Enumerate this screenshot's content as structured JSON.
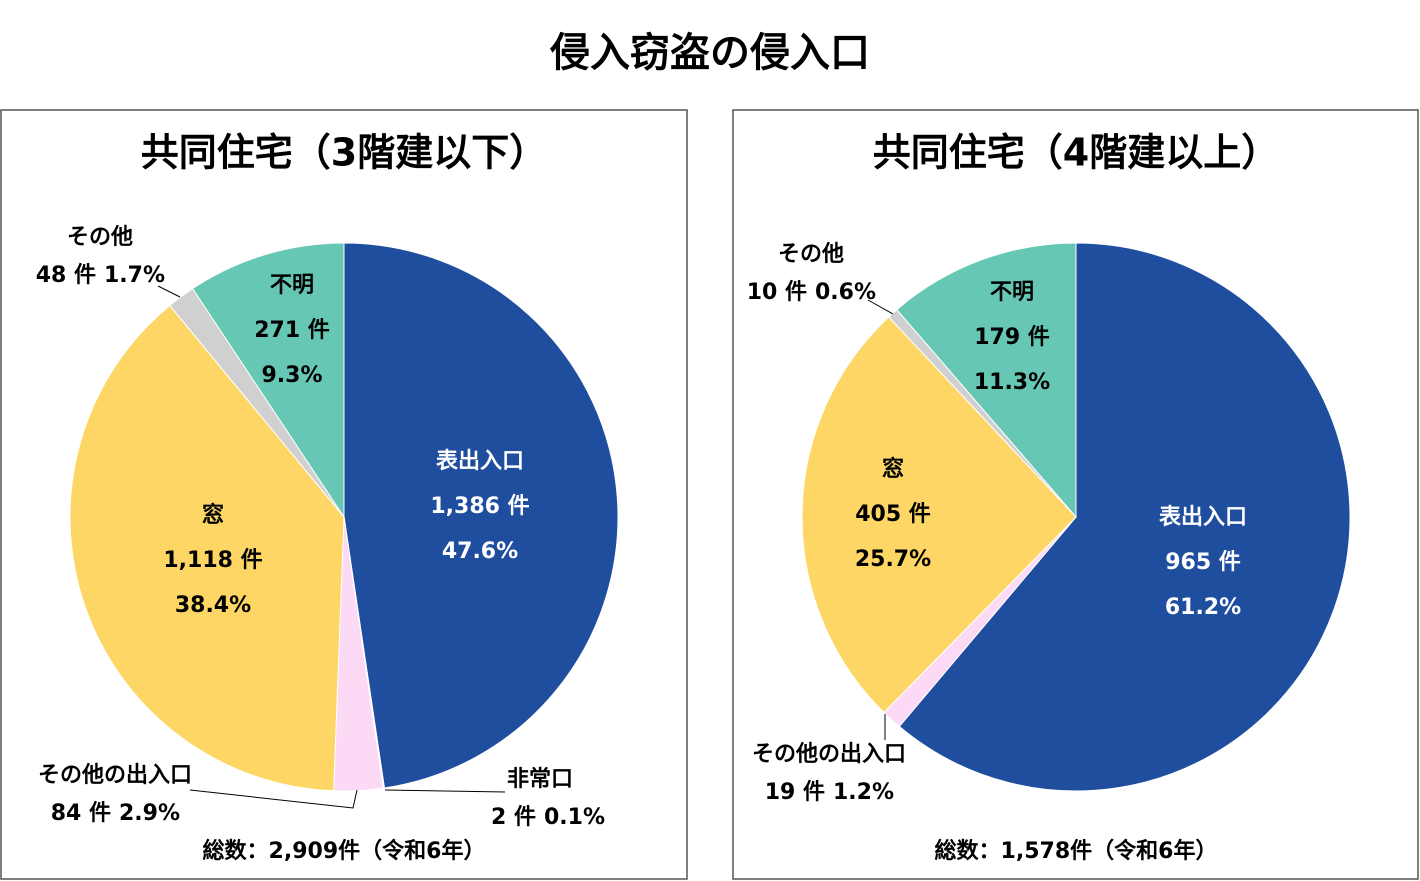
{
  "title": "侵入窃盗の侵入口",
  "chart_data": [
    {
      "type": "pie",
      "title": "共同住宅（3階建以下）",
      "categories": [
        "表出入口",
        "非常口",
        "その他の出入口",
        "窓",
        "その他",
        "不明"
      ],
      "values": [
        1386,
        2,
        84,
        1118,
        48,
        271
      ],
      "value_labels": [
        "1,386 件",
        "2 件",
        "84 件",
        "1,118 件",
        "48 件",
        "271 件"
      ],
      "percents": [
        47.6,
        0.1,
        2.9,
        38.4,
        1.7,
        9.3
      ],
      "percent_labels": [
        "47.6%",
        "0.1%",
        "2.9%",
        "38.4%",
        "1.7%",
        "9.3%"
      ],
      "colors": [
        "#1f4e9f",
        "#e6e6e6",
        "#fcd9f5",
        "#fdd665",
        "#d0d0d0",
        "#66c8b4"
      ],
      "total_label": "総数：2,909件（令和6年）"
    },
    {
      "type": "pie",
      "title": "共同住宅（4階建以上）",
      "categories": [
        "表出入口",
        "その他の出入口",
        "窓",
        "その他",
        "不明"
      ],
      "values": [
        965,
        19,
        405,
        10,
        179
      ],
      "value_labels": [
        "965 件",
        "19 件",
        "405 件",
        "10 件",
        "179 件"
      ],
      "percents": [
        61.2,
        1.2,
        25.7,
        0.6,
        11.3
      ],
      "percent_labels": [
        "61.2%",
        "1.2%",
        "25.7%",
        "0.6%",
        "11.3%"
      ],
      "colors": [
        "#1f4e9f",
        "#fcd9f5",
        "#fdd665",
        "#d0d0d0",
        "#66c8b4"
      ],
      "total_label": "総数：1,578件（令和6年）"
    }
  ]
}
